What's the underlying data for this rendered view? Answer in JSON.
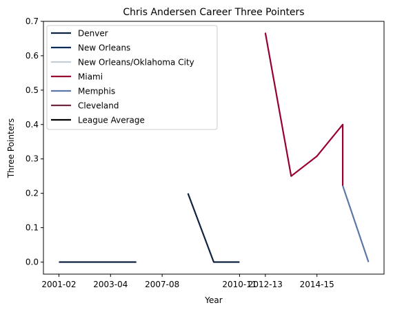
{
  "chart_data": {
    "type": "line",
    "title": "Chris Andersen Career Three Pointers",
    "xlabel": "Year",
    "ylabel": "Three Pointers",
    "x_tick_labels": [
      "2001-02",
      "2003-04",
      "2007-08",
      "2010-11",
      "2012-13",
      "2014-15"
    ],
    "ylim": [
      -0.035,
      0.7
    ],
    "y_ticks": [
      0.0,
      0.1,
      0.2,
      0.3,
      0.4,
      0.5,
      0.6,
      0.7
    ],
    "y_tick_labels": [
      "0.0",
      "0.1",
      "0.2",
      "0.3",
      "0.4",
      "0.5",
      "0.6",
      "0.7"
    ],
    "grid": false,
    "legend_position": "top-left",
    "series": [
      {
        "name": "Denver",
        "color": "#0E2240",
        "points": [
          [
            "2001-02",
            0.0
          ],
          [
            "2002-03",
            0.0
          ],
          [
            "2003-04",
            0.0
          ],
          [
            "2004-05",
            0.0
          ]
        ]
      },
      {
        "name": "New Orleans",
        "color": "#0C2C56",
        "points": []
      },
      {
        "name": "New Orleans/Oklahoma City",
        "color": "#C4CED4",
        "points": []
      },
      {
        "name": "Miami",
        "color": "#98002E",
        "points": [
          [
            "2012-13",
            0.667
          ],
          [
            "2013-14",
            0.25
          ],
          [
            "2014-15",
            0.308
          ],
          [
            "2015-16",
            0.4
          ],
          [
            "2015-16",
            0.222
          ]
        ]
      },
      {
        "name": "Memphis",
        "color": "#5D76A9",
        "points": [
          [
            "2015-16",
            0.222
          ],
          [
            "2016-17",
            0.0
          ]
        ]
      },
      {
        "name": "Cleveland",
        "color": "#6F263D",
        "points": []
      },
      {
        "name": "League Average",
        "color": "#000000",
        "points": []
      },
      {
        "name": "",
        "color": "#0E2240",
        "points": [
          [
            "2008-09",
            0.2
          ],
          [
            "2009-10",
            0.0
          ],
          [
            "2010-11",
            0.0
          ]
        ]
      }
    ],
    "x_positions": {
      "2001-02": 0,
      "2002-03": 1,
      "2003-04": 2,
      "2004-05": 3,
      "2007-08": 4,
      "2008-09": 5,
      "2009-10": 6,
      "2010-11": 7,
      "2012-13": 8,
      "2013-14": 9,
      "2014-15": 10,
      "2015-16": 11,
      "2016-17": 12
    },
    "xlim": [
      -0.6,
      12.6
    ]
  }
}
